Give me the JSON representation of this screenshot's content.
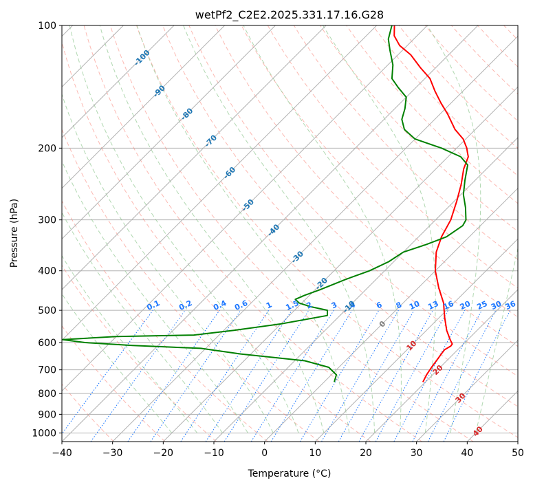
{
  "chart_data": {
    "type": "line",
    "subtype": "skew-t log-p",
    "title": "wetPf2_C2E2.2025.331.17.16.G28",
    "xlabel": "Temperature (°C)",
    "ylabel": "Pressure (hPa)",
    "xlim": [
      -40,
      50
    ],
    "ylim": [
      1050,
      100
    ],
    "x_ticks": [
      -40,
      -30,
      -20,
      -10,
      0,
      10,
      20,
      30,
      40,
      50
    ],
    "x_tick_labels": [
      "−40",
      "−30",
      "−20",
      "−10",
      "0",
      "10",
      "20",
      "30",
      "40",
      "50"
    ],
    "y_ticks": [
      1000,
      900,
      800,
      700,
      600,
      500,
      400,
      300,
      200,
      100
    ],
    "y_tick_labels": [
      "1000",
      "900",
      "800",
      "700",
      "600",
      "500",
      "400",
      "300",
      "200",
      "100"
    ],
    "skew_isotherm_labels": [
      "-100",
      "-90",
      "-80",
      "-70",
      "-60",
      "-50",
      "-40",
      "-30",
      "-20",
      "-10",
      "0",
      "10",
      "20",
      "30",
      "40"
    ],
    "mixing_ratio_labels": [
      "0.1",
      "0.2",
      "0.4",
      "0.6",
      "1",
      "1.5",
      "2",
      "3",
      "4",
      "6",
      "8",
      "10",
      "13",
      "16",
      "20",
      "25",
      "30",
      "36"
    ],
    "colors": {
      "temperature": "#ff0000",
      "dewpoint": "#008000",
      "grid": "#b0b0b0",
      "dry_adiabat": "#fa8072",
      "moist_adiabat": "#90c890",
      "mixing_ratio": "#1e78ff",
      "isotherm_cold_label": "#1f77b4",
      "isotherm_warm_label": "#d62728",
      "isotherm_zero_label": "#808080"
    },
    "series": [
      {
        "name": "Temperature",
        "points": [
          [
            19.5,
            750
          ],
          [
            18.8,
            720
          ],
          [
            18.3,
            690
          ],
          [
            17.9,
            660
          ],
          [
            17.6,
            640
          ],
          [
            17.4,
            625
          ],
          [
            17.9,
            612
          ],
          [
            17.8,
            605
          ],
          [
            16.5,
            590
          ],
          [
            14.0,
            560
          ],
          [
            11.0,
            520
          ],
          [
            8.0,
            480
          ],
          [
            4.0,
            440
          ],
          [
            0.0,
            400
          ],
          [
            -3.5,
            360
          ],
          [
            -5.5,
            330
          ],
          [
            -7.0,
            300
          ],
          [
            -9.5,
            270
          ],
          [
            -12.0,
            245
          ],
          [
            -14.5,
            225
          ],
          [
            -16.0,
            210
          ],
          [
            -17.0,
            205
          ],
          [
            -18.0,
            200
          ],
          [
            -20.5,
            190
          ],
          [
            -24.0,
            180
          ],
          [
            -28.5,
            165
          ],
          [
            -32.0,
            155
          ],
          [
            -35.5,
            145
          ],
          [
            -39.0,
            135
          ],
          [
            -43.0,
            127
          ],
          [
            -47.5,
            118
          ],
          [
            -51.5,
            112
          ],
          [
            -54.5,
            106
          ],
          [
            -56.5,
            100
          ]
        ]
      },
      {
        "name": "Dewpoint",
        "points": [
          [
            2.0,
            750
          ],
          [
            1.0,
            720
          ],
          [
            -2.0,
            690
          ],
          [
            -8.0,
            665
          ],
          [
            -22.0,
            640
          ],
          [
            -31.0,
            620
          ],
          [
            -45.0,
            610
          ],
          [
            -55.0,
            600
          ],
          [
            -60.0,
            590
          ],
          [
            -50.0,
            580
          ],
          [
            -35.0,
            575
          ],
          [
            -28.0,
            560
          ],
          [
            -20.0,
            540
          ],
          [
            -12.5,
            515
          ],
          [
            -13.5,
            500
          ],
          [
            -17.5,
            490
          ],
          [
            -20.5,
            480
          ],
          [
            -22.0,
            470
          ],
          [
            -21.0,
            460
          ],
          [
            -19.0,
            445
          ],
          [
            -16.0,
            420
          ],
          [
            -13.0,
            400
          ],
          [
            -11.0,
            380
          ],
          [
            -10.0,
            360
          ],
          [
            -7.0,
            345
          ],
          [
            -4.5,
            330
          ],
          [
            -3.5,
            310
          ],
          [
            -4.0,
            300
          ],
          [
            -6.5,
            280
          ],
          [
            -9.5,
            260
          ],
          [
            -12.0,
            240
          ],
          [
            -14.5,
            220
          ],
          [
            -17.5,
            210
          ],
          [
            -23.0,
            200
          ],
          [
            -30.0,
            190
          ],
          [
            -34.0,
            180
          ],
          [
            -36.5,
            170
          ],
          [
            -38.0,
            160
          ],
          [
            -40.0,
            150
          ],
          [
            -43.5,
            142
          ],
          [
            -46.5,
            135
          ],
          [
            -49.0,
            125
          ],
          [
            -52.5,
            115
          ],
          [
            -55.0,
            108
          ],
          [
            -57.0,
            100
          ]
        ]
      }
    ]
  }
}
